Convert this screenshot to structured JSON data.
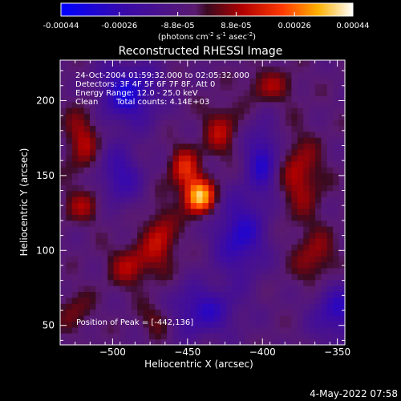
{
  "colorbar": {
    "ticks": [
      "-0.00044",
      "-0.00026",
      "-8.8e-05",
      "8.8e-05",
      "0.00026",
      "0.00044"
    ],
    "unit_label": "(photons cm",
    "unit_exp1": "-2",
    "unit_mid": " s",
    "unit_exp2": "-1",
    "unit_end": " asec",
    "unit_exp3": "-2",
    "unit_close": ")"
  },
  "chart_data": {
    "type": "heatmap",
    "title": "Reconstructed RHESSI Image",
    "xlabel": "Heliocentric X (arcsec)",
    "ylabel": "Heliocentric Y (arcsec)",
    "xlim": [
      -535,
      -345
    ],
    "ylim": [
      37,
      227
    ],
    "xticks": [
      -500,
      -450,
      -400,
      -350
    ],
    "yticks": [
      50,
      100,
      150,
      200
    ],
    "xtick_labels": [
      "−500",
      "−450",
      "−400",
      "−350"
    ],
    "ytick_labels": [
      "50",
      "100",
      "150",
      "200"
    ],
    "zlim": [
      -0.00044,
      0.00044
    ],
    "colormap": "rhessi-purple-red-yellow-white",
    "peak": [
      -442,
      136
    ],
    "features": [
      {
        "x": -442,
        "y": 136,
        "value": 0.00042,
        "sx": 7,
        "sy": 8
      },
      {
        "x": -452,
        "y": 155,
        "value": 0.00022,
        "sx": 7,
        "sy": 10
      },
      {
        "x": -468,
        "y": 108,
        "value": 0.00018,
        "sx": 8,
        "sy": 14
      },
      {
        "x": -488,
        "y": 90,
        "value": 0.00016,
        "sx": 10,
        "sy": 10
      },
      {
        "x": -428,
        "y": 180,
        "value": 0.00016,
        "sx": 8,
        "sy": 12
      },
      {
        "x": -520,
        "y": 175,
        "value": 0.00016,
        "sx": 8,
        "sy": 16
      },
      {
        "x": -520,
        "y": 130,
        "value": 0.00013,
        "sx": 10,
        "sy": 8
      },
      {
        "x": -375,
        "y": 150,
        "value": 0.00017,
        "sx": 10,
        "sy": 18
      },
      {
        "x": -365,
        "y": 95,
        "value": 0.00014,
        "sx": 10,
        "sy": 14
      },
      {
        "x": -395,
        "y": 210,
        "value": 0.00013,
        "sx": 12,
        "sy": 8
      },
      {
        "x": -490,
        "y": 205,
        "value": -0.00028,
        "sx": 14,
        "sy": 14
      },
      {
        "x": -415,
        "y": 110,
        "value": -0.00025,
        "sx": 12,
        "sy": 18
      },
      {
        "x": -495,
        "y": 150,
        "value": -0.0002,
        "sx": 10,
        "sy": 14
      },
      {
        "x": -400,
        "y": 160,
        "value": -0.00024,
        "sx": 8,
        "sy": 16
      },
      {
        "x": -440,
        "y": 60,
        "value": -0.00022,
        "sx": 16,
        "sy": 12
      },
      {
        "x": -350,
        "y": 60,
        "value": -0.00022,
        "sx": 12,
        "sy": 14
      },
      {
        "x": -525,
        "y": 60,
        "value": 0.0001,
        "sx": 8,
        "sy": 10
      },
      {
        "x": -470,
        "y": 55,
        "value": 0.00012,
        "sx": 8,
        "sy": 8
      }
    ]
  },
  "annotations": {
    "time_range": "24-Oct-2004 01:59:32.000 to 02:05:32.000",
    "detectors": "Detectors: 3F 4F 5F 6F 7F 8F, Att 0",
    "energy": "Energy Range: 12.0 - 25.0 keV",
    "clean_label": "Clean",
    "total_counts": "Total counts: 4.14E+03",
    "peak_position": "Position of Peak = [-442,136]"
  },
  "footer": {
    "date": "4-May-2022 07:58"
  }
}
